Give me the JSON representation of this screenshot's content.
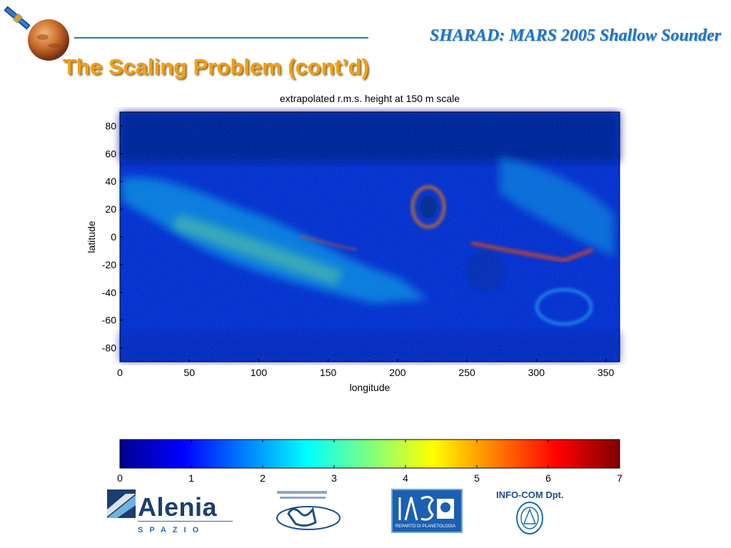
{
  "header": {
    "title": "SHARAD: MARS 2005 Shallow Sounder"
  },
  "slide": {
    "title": "The Scaling Problem (cont’d)"
  },
  "icons": {
    "satellite": "satellite-icon",
    "planet": "mars-planet-icon"
  },
  "chart_data": {
    "type": "heatmap",
    "title": "extrapolated r.m.s. height at 150 m scale",
    "xlabel": "longitude",
    "ylabel": "latitude",
    "xlim": [
      0,
      360
    ],
    "ylim": [
      -90,
      90
    ],
    "x_ticks": [
      0,
      50,
      100,
      150,
      200,
      250,
      300,
      350
    ],
    "y_ticks": [
      80,
      60,
      40,
      20,
      0,
      -20,
      -40,
      -60,
      -80
    ],
    "colorbar": {
      "min": 0,
      "max": 7,
      "ticks": [
        0,
        1,
        2,
        3,
        4,
        5,
        6,
        7
      ],
      "colormap": "jet"
    }
  },
  "logos": {
    "alenia": {
      "name": "Alenia",
      "sub": "SPAZIO"
    },
    "ias": {
      "caption": "REPARTO DI PLANETOLOGIA"
    },
    "infocom": {
      "name": "INFO-COM Dpt."
    }
  },
  "colors": {
    "header_blue": "#1e73c8",
    "title_orange": "#f0a015"
  }
}
